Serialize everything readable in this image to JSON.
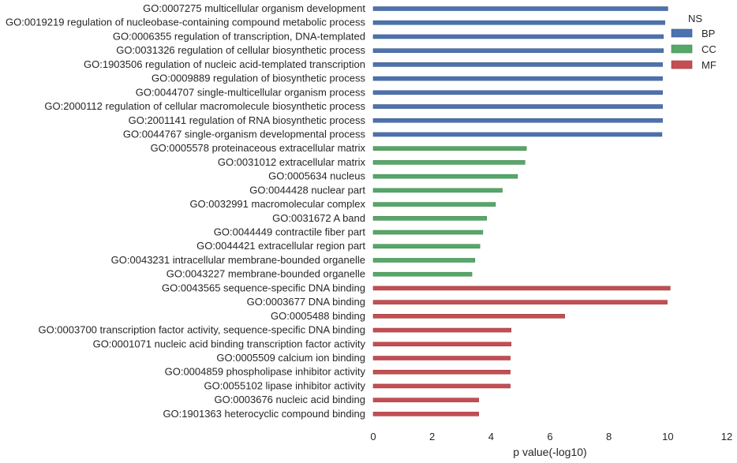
{
  "chart_data": {
    "type": "bar",
    "orientation": "horizontal",
    "title": "",
    "xlabel": "p value(-log10)",
    "ylabel": "",
    "xlim": [
      0,
      12
    ],
    "xticks": [
      0,
      2,
      4,
      6,
      8,
      10,
      12
    ],
    "grid": false,
    "legend": {
      "title": "NS",
      "placement": "top-right",
      "entries": [
        {
          "name": "BP",
          "color": "#4c72b0"
        },
        {
          "name": "CC",
          "color": "#55a868"
        },
        {
          "name": "MF",
          "color": "#c44e52"
        }
      ]
    },
    "categories": [
      "GO:0007275 multicellular organism development",
      "GO:0019219 regulation of nucleobase-containing compound metabolic process",
      "GO:0006355 regulation of transcription, DNA-templated",
      "GO:0031326 regulation of cellular biosynthetic process",
      "GO:1903506 regulation of nucleic acid-templated transcription",
      "GO:0009889 regulation of biosynthetic process",
      "GO:0044707 single-multicellular organism process",
      "GO:2000112 regulation of cellular macromolecule biosynthetic process",
      "GO:2001141 regulation of RNA biosynthetic process",
      "GO:0044767 single-organism developmental process",
      "GO:0005578 proteinaceous extracellular matrix",
      "GO:0031012 extracellular matrix",
      "GO:0005634 nucleus",
      "GO:0044428 nuclear part",
      "GO:0032991 macromolecular complex",
      "GO:0031672 A band",
      "GO:0044449 contractile fiber part",
      "GO:0044421 extracellular region part",
      "GO:0043231 intracellular membrane-bounded organelle",
      "GO:0043227 membrane-bounded organelle",
      "GO:0043565 sequence-specific DNA binding",
      "GO:0003677 DNA binding",
      "GO:0005488 binding",
      "GO:0003700 transcription factor activity, sequence-specific DNA binding",
      "GO:0001071 nucleic acid binding transcription factor activity",
      "GO:0005509 calcium ion binding",
      "GO:0004859 phospholipase inhibitor activity",
      "GO:0055102 lipase inhibitor activity",
      "GO:0003676 nucleic acid binding",
      "GO:1901363 heterocyclic compound binding"
    ],
    "values": [
      10.0,
      9.9,
      9.85,
      9.85,
      9.82,
      9.82,
      9.82,
      9.82,
      9.82,
      9.8,
      5.2,
      5.15,
      4.9,
      4.38,
      4.15,
      3.85,
      3.72,
      3.62,
      3.45,
      3.35,
      10.08,
      9.98,
      6.5,
      4.68,
      4.68,
      4.65,
      4.65,
      4.65,
      3.58,
      3.58
    ],
    "groups": [
      "BP",
      "BP",
      "BP",
      "BP",
      "BP",
      "BP",
      "BP",
      "BP",
      "BP",
      "BP",
      "CC",
      "CC",
      "CC",
      "CC",
      "CC",
      "CC",
      "CC",
      "CC",
      "CC",
      "CC",
      "MF",
      "MF",
      "MF",
      "MF",
      "MF",
      "MF",
      "MF",
      "MF",
      "MF",
      "MF"
    ]
  }
}
